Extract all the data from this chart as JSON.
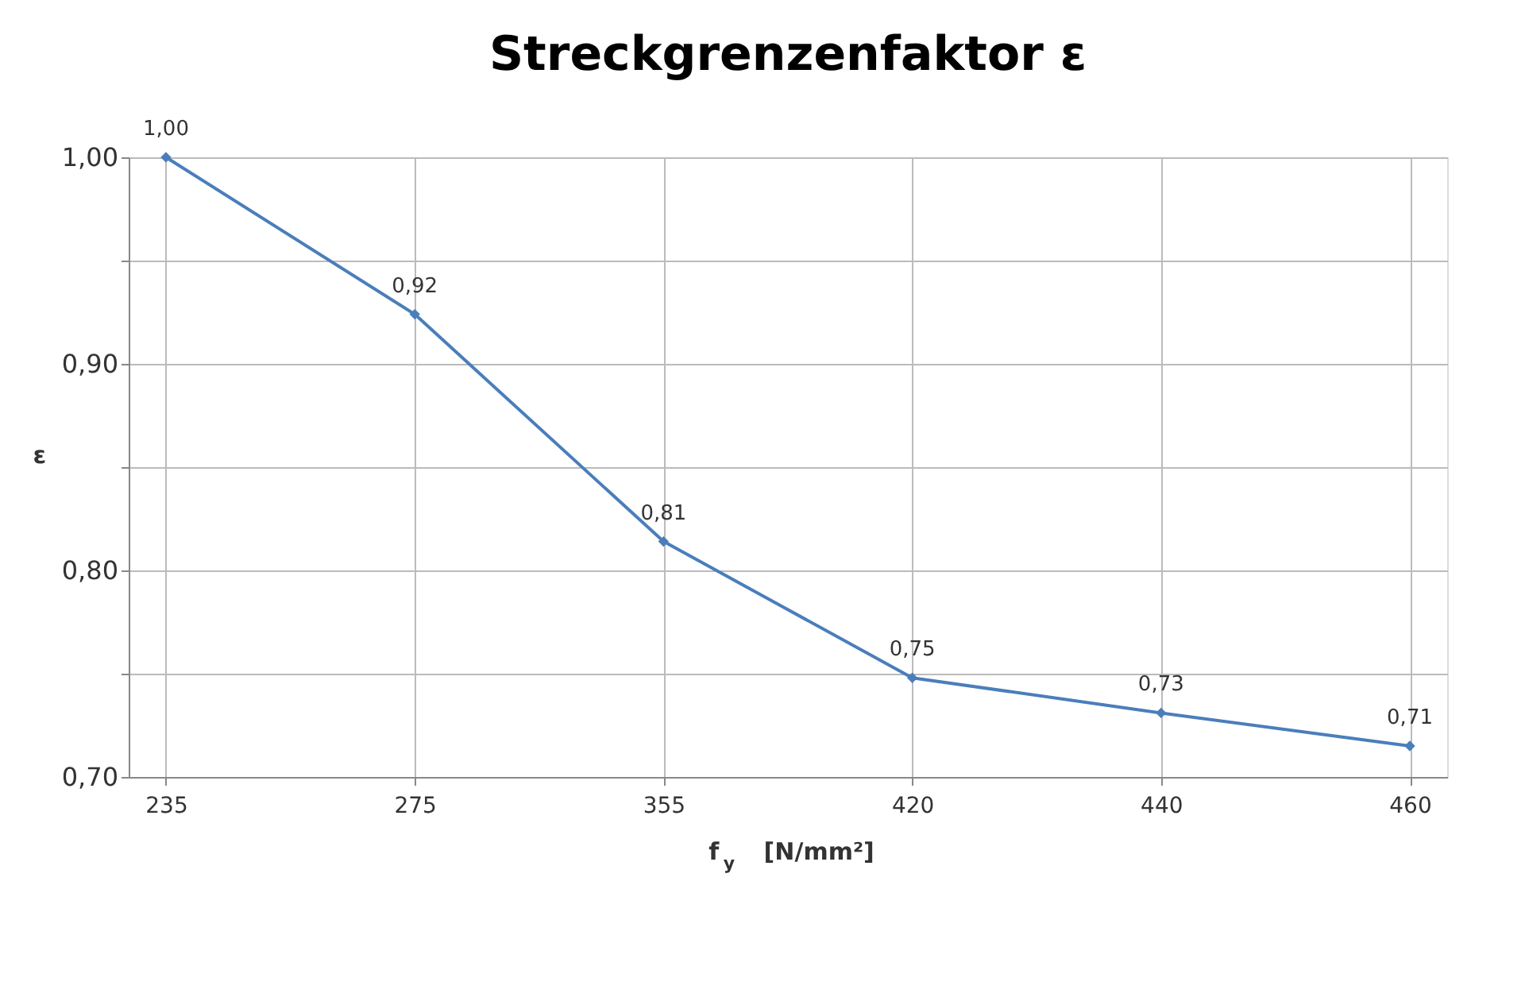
{
  "chart_data": {
    "type": "line",
    "title": "Streckgrenzenfaktor ε",
    "xlabel": "f$_{y}$  [N/mm²]",
    "ylabel": "ε",
    "categories": [
      "235",
      "275",
      "355",
      "420",
      "440",
      "460"
    ],
    "series": [
      {
        "color": "#4a7ebb",
        "values": [
          1.0,
          0.924,
          0.814,
          0.748,
          0.731,
          0.715
        ],
        "value_labels": [
          "1,00",
          "0,92",
          "0,81",
          "0,75",
          "0,73",
          "0,71"
        ]
      }
    ],
    "ylim": [
      0.7,
      1.0
    ],
    "yticks": [
      {
        "value": 0.7,
        "label": "0,70"
      },
      {
        "value": 0.75,
        "label": null
      },
      {
        "value": 0.8,
        "label": "0,80"
      },
      {
        "value": 0.85,
        "label": null
      },
      {
        "value": 0.9,
        "label": "0,90"
      },
      {
        "value": 0.95,
        "label": null
      },
      {
        "value": 1.0,
        "label": "1,00"
      }
    ],
    "grid": true,
    "legend": false,
    "marker": "diamond",
    "line_style": "solid"
  }
}
